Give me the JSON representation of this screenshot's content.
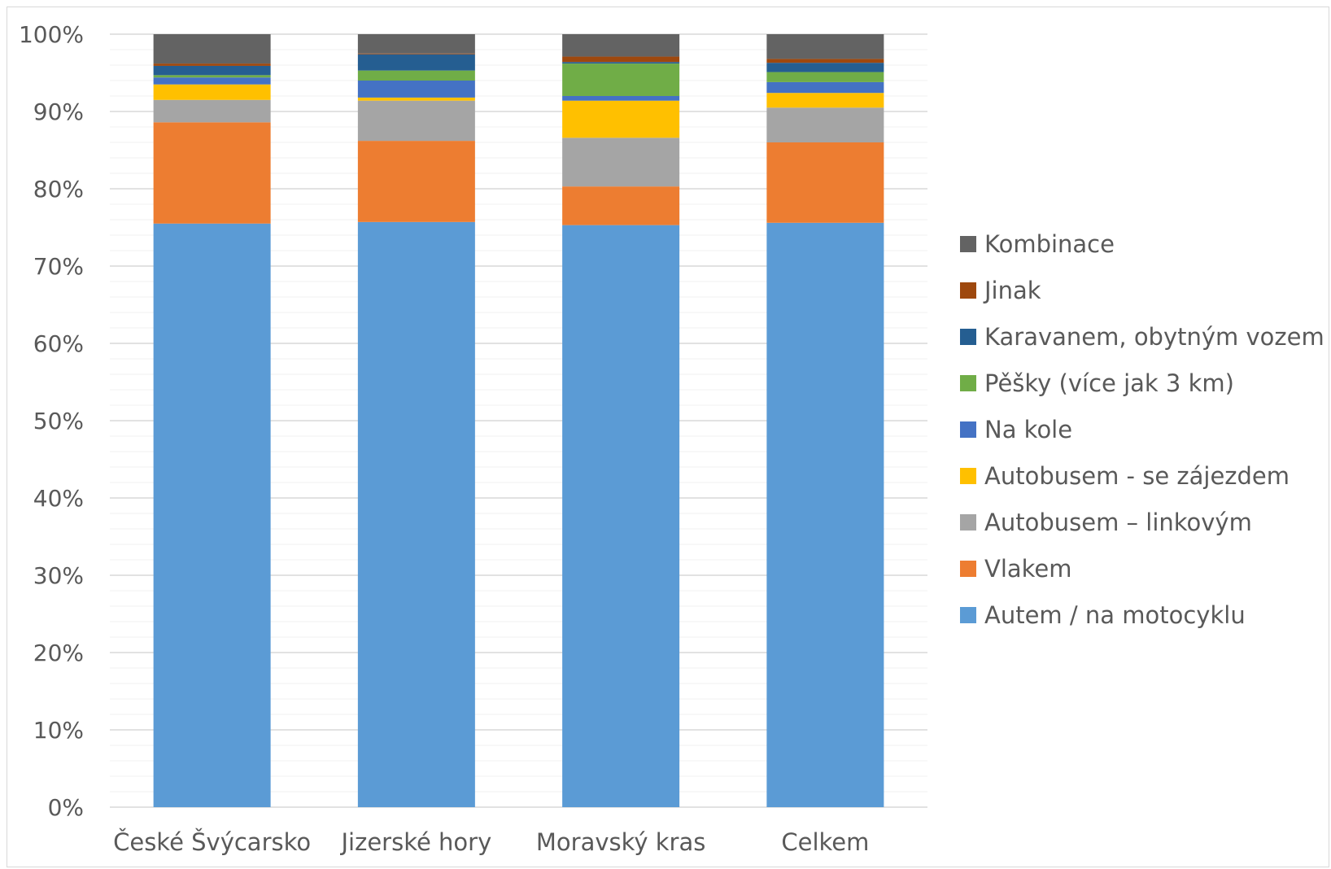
{
  "chart_data": {
    "type": "bar",
    "stacked": true,
    "percent_stacked": true,
    "categories": [
      "České Švýcarsko",
      "Jizerské hory",
      "Moravský kras",
      "Celkem"
    ],
    "y_ticks": [
      "0%",
      "10%",
      "20%",
      "30%",
      "40%",
      "50%",
      "60%",
      "70%",
      "80%",
      "90%",
      "100%"
    ],
    "ylim": [
      0,
      100
    ],
    "grid": true,
    "minor_grid": true,
    "legend_position": "right",
    "series": [
      {
        "name": "Autem / na motocyklu",
        "color": "#5b9bd5",
        "values": [
          75.5,
          75.7,
          75.3,
          75.6
        ]
      },
      {
        "name": "Vlakem",
        "color": "#ed7d31",
        "values": [
          13.1,
          10.5,
          5.0,
          10.4
        ]
      },
      {
        "name": "Autobusem – linkovým",
        "color": "#a5a5a5",
        "values": [
          2.9,
          5.2,
          6.3,
          4.5
        ]
      },
      {
        "name": "Autobusem - se zájezdem",
        "color": "#ffc000",
        "values": [
          2.0,
          0.4,
          4.8,
          1.9
        ]
      },
      {
        "name": "Na kole",
        "color": "#4472c4",
        "values": [
          0.9,
          2.2,
          0.6,
          1.4
        ]
      },
      {
        "name": "Pěšky (více jak 3 km)",
        "color": "#70ad47",
        "values": [
          0.3,
          1.3,
          4.2,
          1.3
        ]
      },
      {
        "name": "Karavanem, obytným vozem",
        "color": "#255e91",
        "values": [
          1.2,
          2.1,
          0.2,
          1.2
        ]
      },
      {
        "name": "Jinak",
        "color": "#9e480e",
        "values": [
          0.3,
          0.1,
          0.7,
          0.5
        ]
      },
      {
        "name": "Kombinace",
        "color": "#636363",
        "values": [
          3.8,
          2.5,
          2.9,
          3.2
        ]
      }
    ],
    "legend_order": [
      "Kombinace",
      "Jinak",
      "Karavanem, obytným vozem",
      "Pěšky (více jak 3 km)",
      "Na kole",
      "Autobusem - se zájezdem",
      "Autobusem – linkovým",
      "Vlakem",
      "Autem / na motocyklu"
    ]
  }
}
